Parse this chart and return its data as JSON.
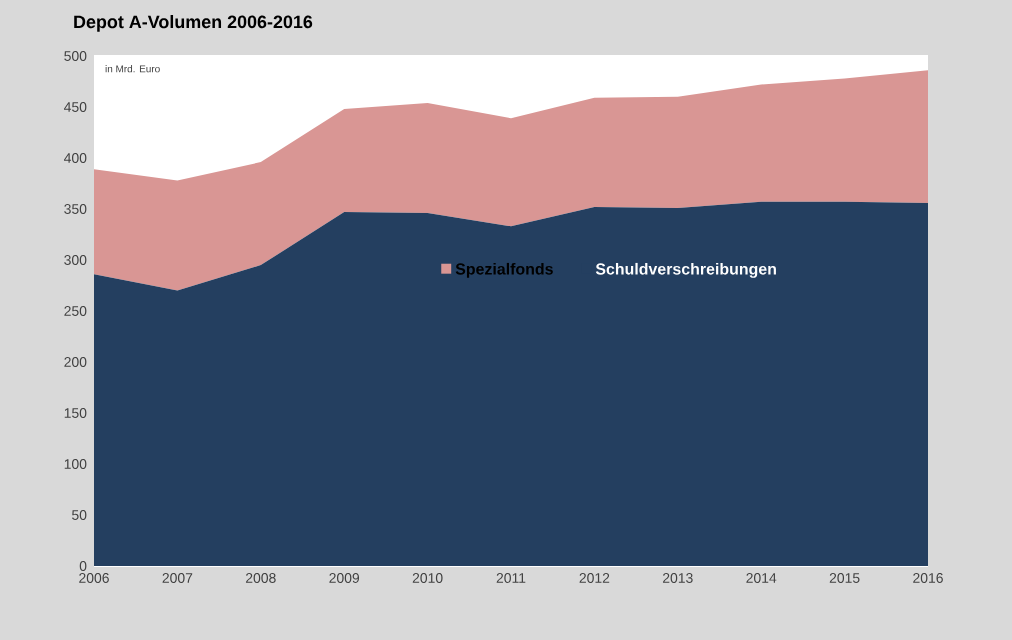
{
  "chart_data": {
    "type": "area",
    "stacked": true,
    "title": "Depot A-Volumen 2006-2016",
    "ylabel": "in Mrd. Euro",
    "x": [
      2006,
      2007,
      2008,
      2009,
      2010,
      2011,
      2012,
      2013,
      2014,
      2015,
      2016
    ],
    "xlim": [
      2006,
      2016
    ],
    "xticks": [
      2006,
      2007,
      2008,
      2009,
      2010,
      2011,
      2012,
      2013,
      2014,
      2015,
      2016
    ],
    "ylim": [
      0,
      500
    ],
    "yticks": [
      0,
      50,
      100,
      150,
      200,
      250,
      300,
      350,
      400,
      450,
      500
    ],
    "grid": "y",
    "legend": "center",
    "series": [
      {
        "name": "Schuldverschreibungen",
        "color": "#243f60",
        "values": [
          286,
          270,
          295,
          347,
          346,
          333,
          352,
          351,
          357,
          357,
          356
        ]
      },
      {
        "name": "Spezialfonds",
        "color": "#d99694",
        "values": [
          103,
          108,
          101,
          101,
          108,
          106,
          107,
          109,
          115,
          121,
          130
        ]
      }
    ]
  }
}
